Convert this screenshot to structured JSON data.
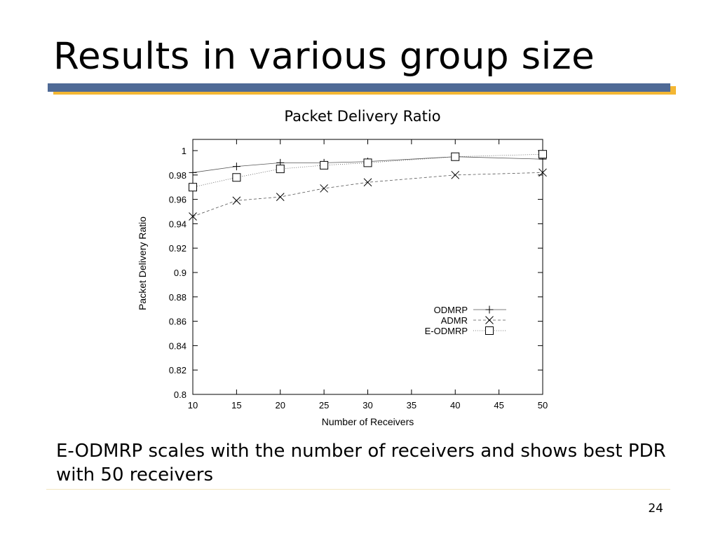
{
  "slide": {
    "title": "Results in various group size",
    "body": "E-ODMRP scales with the number of receivers and shows best PDR with 50 receivers",
    "page_number": "24",
    "colors": {
      "title_bar_blue": "#4f6a96",
      "title_bar_gold": "#f4b733"
    }
  },
  "chart_data": {
    "type": "line",
    "title": "Packet Delivery Ratio",
    "xlabel": "Number of Receivers",
    "ylabel": "Packet Delivery Ratio",
    "xlim": [
      10,
      50
    ],
    "ylim": [
      0.8,
      1.0
    ],
    "x_ticks": [
      "10",
      "15",
      "20",
      "25",
      "30",
      "35",
      "40",
      "45",
      "50"
    ],
    "y_ticks": [
      "0.8",
      "0.82",
      "0.84",
      "0.86",
      "0.88",
      "0.9",
      "0.92",
      "0.94",
      "0.96",
      "0.98",
      "1"
    ],
    "grid": false,
    "legend_position": "lower-right",
    "series": [
      {
        "name": "ODMRP",
        "marker": "plus",
        "line": "solid",
        "x": [
          10,
          15,
          20,
          25,
          30,
          40,
          50
        ],
        "y": [
          0.982,
          0.987,
          0.99,
          0.99,
          0.991,
          0.995,
          0.993
        ]
      },
      {
        "name": "ADMR",
        "marker": "cross",
        "line": "dashed",
        "x": [
          10,
          15,
          20,
          25,
          30,
          40,
          50
        ],
        "y": [
          0.946,
          0.959,
          0.962,
          0.969,
          0.974,
          0.98,
          0.982
        ]
      },
      {
        "name": "E-ODMRP",
        "marker": "square",
        "line": "dotted",
        "x": [
          10,
          15,
          20,
          25,
          30,
          40,
          50
        ],
        "y": [
          0.97,
          0.978,
          0.985,
          0.988,
          0.99,
          0.995,
          0.997
        ]
      }
    ]
  }
}
